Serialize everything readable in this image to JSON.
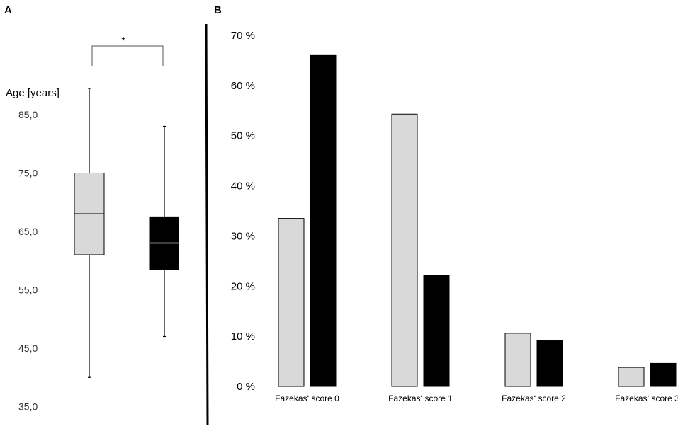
{
  "panel_a_label": "A",
  "panel_b_label": "B",
  "chart_data": [
    {
      "type": "box",
      "ylabel": "Age [years]",
      "yticks": [
        "85,0",
        "75,0",
        "65,0",
        "55,0",
        "45,0",
        "35,0"
      ],
      "ylim": [
        35,
        90
      ],
      "colors": [
        "#d9d9d9",
        "#000000"
      ],
      "boxes": [
        {
          "min": 40,
          "q1": 61,
          "median": 68,
          "q3": 75,
          "max": 89.5
        },
        {
          "min": 47,
          "q1": 58.5,
          "median": 63,
          "q3": 67.5,
          "max": 83
        }
      ],
      "significance": "*"
    },
    {
      "type": "bar",
      "categories": [
        "Fazekas‘ score 0",
        "Fazekas‘ score 1",
        "Fazekas‘ score 2",
        "Fazekas‘ score 3"
      ],
      "yticks": [
        "70 %",
        "60 %",
        "50 %",
        "40 %",
        "30 %",
        "20 %",
        "10 %",
        "0 %"
      ],
      "ylim": [
        0,
        70
      ],
      "colors": [
        "#d9d9d9",
        "#000000"
      ],
      "series": [
        {
          "values": [
            33.5,
            54.3,
            10.6,
            3.8
          ]
        },
        {
          "values": [
            66,
            22.2,
            9.1,
            4.6
          ]
        }
      ]
    }
  ]
}
